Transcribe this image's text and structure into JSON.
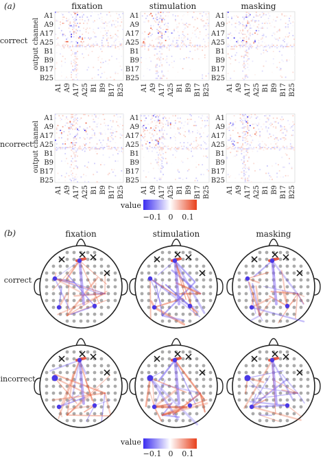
{
  "panel_a": {
    "label": "(a)",
    "columns": [
      "fixation",
      "stimulation",
      "masking"
    ],
    "rows": [
      "correct",
      "incorrect"
    ],
    "y_axis_title": "output channel",
    "y_ticks": [
      "A1",
      "A9",
      "A17",
      "A25",
      "B1",
      "B9",
      "B17",
      "B25"
    ],
    "x_ticks": [
      "A1",
      "A9",
      "A17",
      "A25",
      "B1",
      "B9",
      "B17",
      "B25"
    ],
    "colorbar": {
      "title": "value",
      "ticks": [
        "−0.1",
        "0",
        "0.1"
      ],
      "min_color": "#3b2df0",
      "mid_color": "#ffffff",
      "max_color": "#e8401c"
    }
  },
  "panel_b": {
    "label": "(b)",
    "columns": [
      "fixation",
      "stimulation",
      "masking"
    ],
    "rows": [
      "correct",
      "incorrect"
    ],
    "colorbar": {
      "title": "value",
      "ticks": [
        "−0.1",
        "0",
        "0.1"
      ],
      "min_color": "#3b2df0",
      "mid_color": "#ffffff",
      "max_color": "#e8401c"
    }
  },
  "chart_data": [
    {
      "type": "heatmap",
      "title": "",
      "columns": [
        "fixation",
        "stimulation",
        "masking"
      ],
      "rows": [
        "correct",
        "incorrect"
      ],
      "xlabel": "",
      "ylabel": "output channel",
      "x_ticks": [
        "A1",
        "A9",
        "A17",
        "A25",
        "B1",
        "B9",
        "B17",
        "B25"
      ],
      "y_ticks": [
        "A1",
        "A9",
        "A17",
        "A25",
        "B1",
        "B9",
        "B17",
        "B25"
      ],
      "value_range": [
        -0.1,
        0.1
      ],
      "colorbar_ticks": [
        -0.1,
        0,
        0.1
      ]
    },
    {
      "type": "diagram",
      "description_type": "head-topography connectivity",
      "columns": [
        "fixation",
        "stimulation",
        "masking"
      ],
      "rows": [
        "correct",
        "incorrect"
      ],
      "value_range": [
        -0.1,
        0.1
      ],
      "colorbar_ticks": [
        -0.1,
        0,
        0.1
      ]
    }
  ]
}
